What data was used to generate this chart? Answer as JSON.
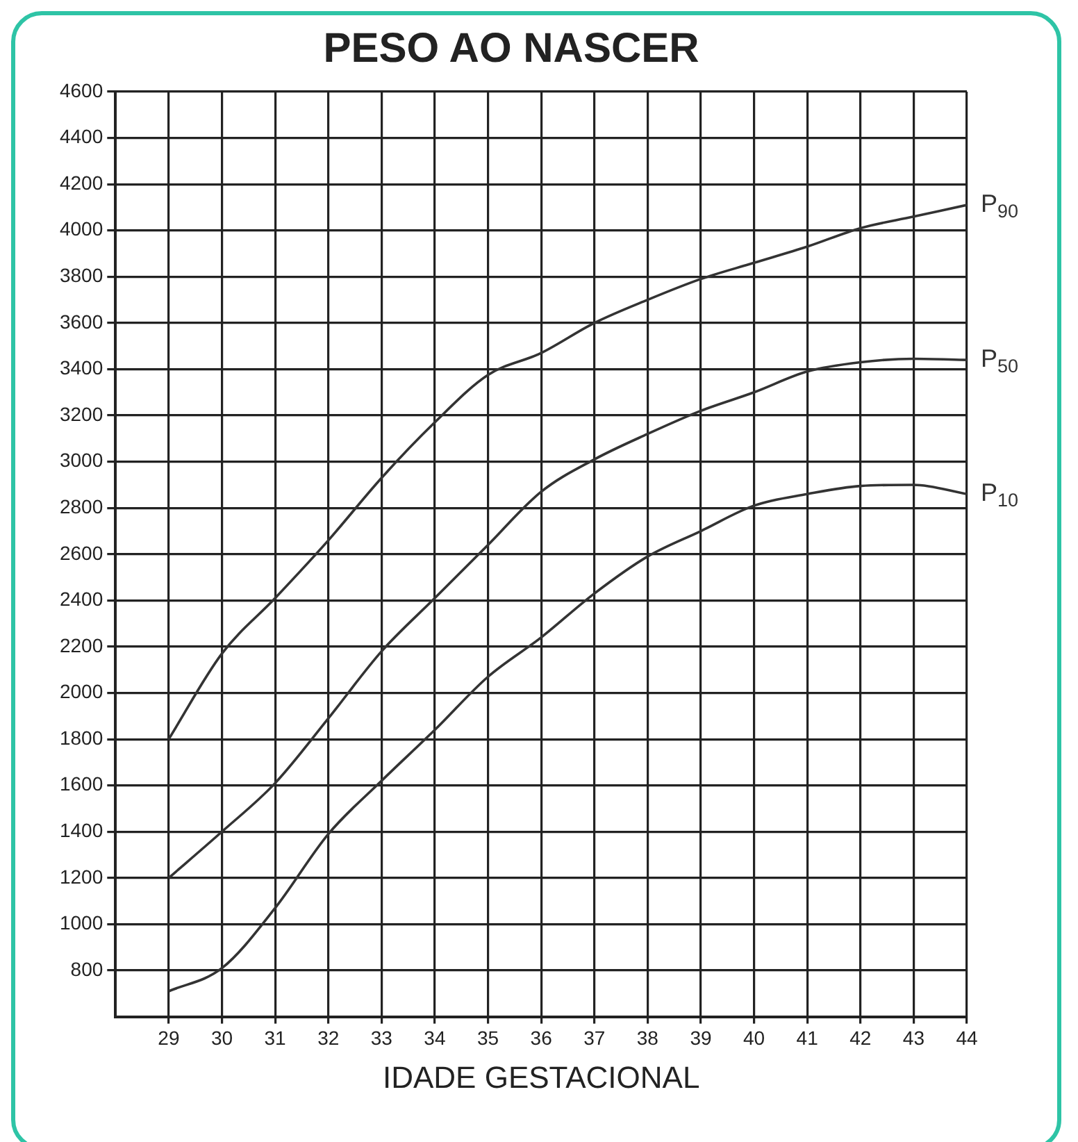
{
  "chart_data": {
    "type": "line",
    "title": "PESO AO NASCER",
    "xlabel": "IDADE GESTACIONAL",
    "x": [
      29,
      30,
      31,
      32,
      33,
      34,
      35,
      36,
      37,
      38,
      39,
      40,
      41,
      42,
      43,
      44
    ],
    "series": [
      {
        "name": "P$_{90}$",
        "color": "#333333",
        "values": [
          1800,
          2170,
          2410,
          2660,
          2930,
          3170,
          3375,
          3470,
          3600,
          3700,
          3790,
          3860,
          3930,
          4010,
          4060,
          4110
        ]
      },
      {
        "name": "P$_{50}$",
        "color": "#333333",
        "values": [
          1200,
          1400,
          1610,
          1890,
          2180,
          2410,
          2640,
          2870,
          3010,
          3120,
          3220,
          3300,
          3390,
          3430,
          3445,
          3440
        ]
      },
      {
        "name": "P$_{10}$",
        "color": "#333333",
        "values": [
          710,
          810,
          1070,
          1390,
          1620,
          1840,
          2070,
          2240,
          2430,
          2590,
          2700,
          2810,
          2860,
          2895,
          2900,
          2860
        ]
      }
    ],
    "xlim": [
      28,
      44
    ],
    "xticks": [
      29,
      30,
      31,
      32,
      33,
      34,
      35,
      36,
      37,
      38,
      39,
      40,
      41,
      42,
      43,
      44
    ],
    "ylim": [
      600,
      4600
    ],
    "yticks": [
      800,
      1000,
      1200,
      1400,
      1600,
      1800,
      2000,
      2200,
      2400,
      2600,
      2800,
      3000,
      3200,
      3400,
      3600,
      3800,
      4000,
      4200,
      4400,
      4600
    ],
    "grid": true,
    "marker": "none",
    "line_style": "solid",
    "legend": false
  }
}
